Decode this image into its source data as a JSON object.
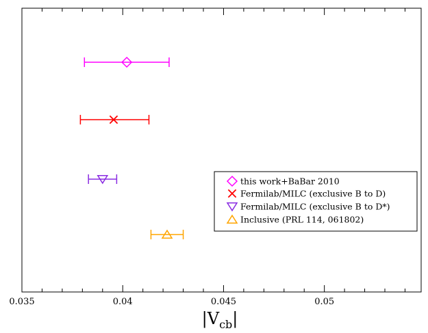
{
  "chart_data": {
    "type": "scatter",
    "title": "",
    "xlabel": "|V",
    "xlabel_sub": "cb",
    "xlabel_suffix": "|",
    "ylabel": "",
    "xlim": [
      0.035,
      0.0548
    ],
    "x_ticks": [
      0.035,
      0.04,
      0.045,
      0.05
    ],
    "x_tick_labels": [
      "0.035",
      "0.04",
      "0.045",
      "0.05"
    ],
    "grid": false,
    "legend_position": "right",
    "series": [
      {
        "name": "this work+BaBar 2010",
        "marker": "diamond",
        "color": "#ff00ff",
        "row": 1,
        "value": 0.0402,
        "err_low": 0.0381,
        "err_high": 0.0423
      },
      {
        "name": "Fermilab/MILC (exclusive B to D)",
        "marker": "x",
        "color": "#ff0000",
        "row": 2,
        "value": 0.03955,
        "err_low": 0.0379,
        "err_high": 0.0413
      },
      {
        "name": "Fermilab/MILC (exclusive B to D*)",
        "marker": "triangle-down",
        "color": "#8a2be2",
        "row": 3,
        "value": 0.039,
        "err_low": 0.0383,
        "err_high": 0.0397
      },
      {
        "name": "Inclusive (PRL 114, 061802)",
        "marker": "triangle-up",
        "color": "#ffa500",
        "row": 4,
        "value": 0.0422,
        "err_low": 0.0414,
        "err_high": 0.043
      }
    ]
  }
}
